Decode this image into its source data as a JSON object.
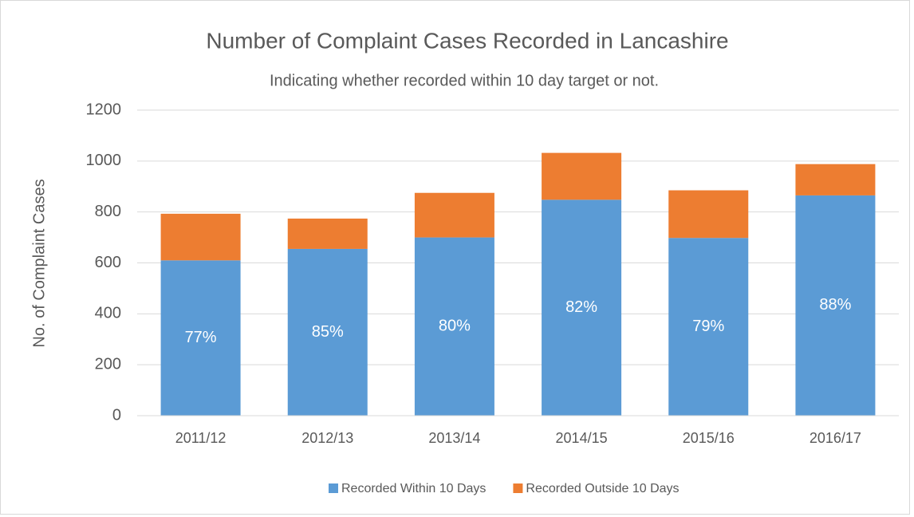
{
  "chart_data": {
    "type": "stacked_bar",
    "title": "Number of Complaint Cases Recorded in Lancashire",
    "subtitle": "Indicating whether recorded within 10 day target or not.",
    "y_label": "No. of Complaint Cases",
    "categories": [
      "2011/12",
      "2012/13",
      "2013/14",
      "2014/15",
      "2015/16",
      "2016/17"
    ],
    "series": [
      {
        "name": "Recorded Within 10 Days",
        "color": "#5b9bd5",
        "values": [
          610,
          655,
          700,
          848,
          698,
          865
        ],
        "data_labels": [
          "77%",
          "85%",
          "80%",
          "82%",
          "79%",
          "88%"
        ]
      },
      {
        "name": "Recorded Outside 10 Days",
        "color": "#ed7d31",
        "values": [
          183,
          119,
          175,
          184,
          187,
          123
        ]
      }
    ],
    "ylim": [
      0,
      1200
    ],
    "yticks": [
      0,
      200,
      400,
      600,
      800,
      1000,
      1200
    ],
    "grid": true,
    "legend": "bottom"
  }
}
